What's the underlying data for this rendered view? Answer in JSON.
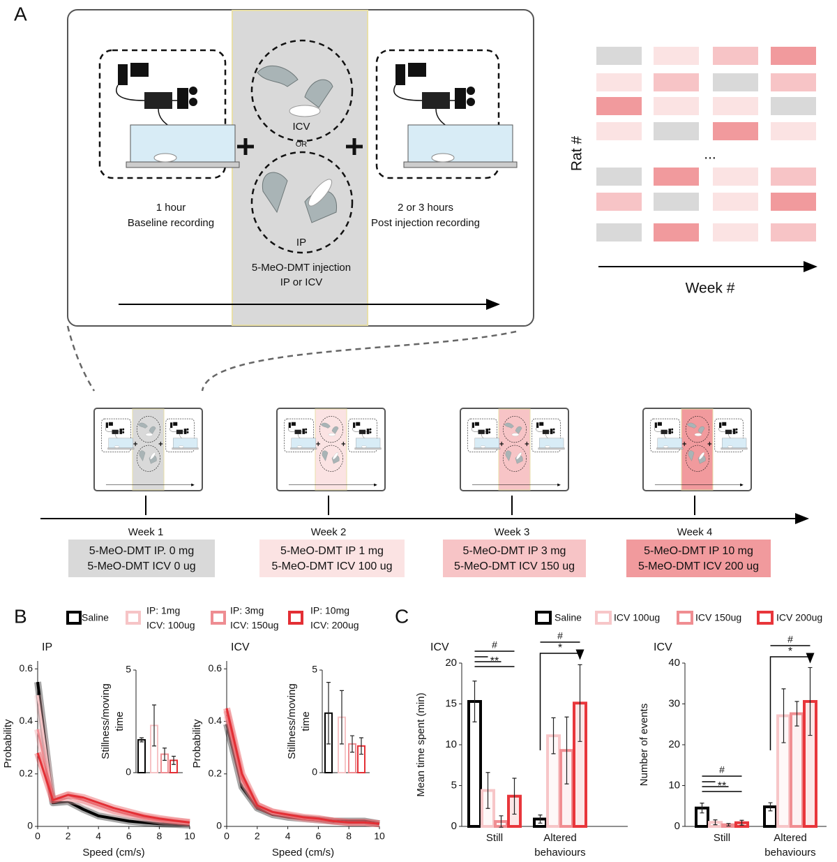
{
  "panel_a": {
    "label": "A",
    "baseline": [
      "1 hour",
      "Baseline recording"
    ],
    "icv": "ICV",
    "or": "OR",
    "ip": "IP",
    "injection": [
      "5-MeO-DMT injection",
      "IP or ICV"
    ],
    "post": [
      "2 or 3 hours",
      "Post injection recording"
    ],
    "heatmap": {
      "y_label": "Rat #",
      "x_label": "Week #",
      "ellipsis": "...",
      "colors": [
        "#d9d9d9",
        "#fbe3e3",
        "#f7c4c6",
        "#f19a9d"
      ],
      "levels": [
        [
          0,
          1,
          2,
          3
        ],
        [
          1,
          2,
          0,
          2
        ],
        [
          3,
          1,
          1,
          0
        ],
        [
          1,
          0,
          3,
          1
        ],
        [
          0,
          3,
          1,
          2
        ],
        [
          2,
          0,
          1,
          3
        ],
        [
          0,
          3,
          1,
          2
        ]
      ]
    }
  },
  "timeline": {
    "weeks": [
      {
        "label": "Week 1",
        "lines": [
          "5-MeO-DMT IP. 0 mg",
          "5-MeO-DMT ICV 0 ug"
        ],
        "color": "#d9d9d9"
      },
      {
        "label": "Week 2",
        "lines": [
          "5-MeO-DMT IP 1 mg",
          "5-MeO-DMT ICV 100 ug"
        ],
        "color": "#fbe3e3"
      },
      {
        "label": "Week 3",
        "lines": [
          "5-MeO-DMT IP 3 mg",
          "5-MeO-DMT ICV 150 ug"
        ],
        "color": "#f7c4c6"
      },
      {
        "label": "Week 4",
        "lines": [
          "5-MeO-DMT IP 10 mg",
          "5-MeO-DMT ICV 200 ug"
        ],
        "color": "#f19a9d"
      }
    ]
  },
  "panel_b": {
    "label": "B",
    "legend": [
      {
        "text": [
          "Saline"
        ],
        "color": "#000000"
      },
      {
        "text": [
          "IP: 1mg",
          "ICV: 100ug"
        ],
        "color": "#f6c4c6"
      },
      {
        "text": [
          "IP: 3mg",
          "ICV: 150ug"
        ],
        "color": "#ee8d92"
      },
      {
        "text": [
          "IP: 10mg",
          "ICV: 200ug"
        ],
        "color": "#e32f35"
      }
    ]
  },
  "panel_c": {
    "label": "C"
  },
  "chart_data": [
    {
      "type": "line",
      "title": "IP",
      "xlabel": "Speed (cm/s)",
      "ylabel": "Probability",
      "x": [
        0,
        1,
        2,
        3,
        4,
        5,
        6,
        7,
        8,
        9,
        10
      ],
      "xlim": [
        0,
        10
      ],
      "xticks": [
        0,
        2,
        4,
        6,
        8,
        10
      ],
      "ylim": [
        0,
        0.63
      ],
      "yticks": [
        0,
        0.2,
        0.4,
        0.6
      ],
      "series": [
        {
          "color": "#000000",
          "values": [
            0.55,
            0.09,
            0.095,
            0.065,
            0.04,
            0.03,
            0.02,
            0.015,
            0.01,
            0.008,
            0.005
          ]
        },
        {
          "color": "#f6c4c6",
          "values": [
            0.5,
            0.1,
            0.1,
            0.09,
            0.07,
            0.05,
            0.04,
            0.03,
            0.02,
            0.015,
            0.01
          ]
        },
        {
          "color": "#ee8d92",
          "values": [
            0.37,
            0.1,
            0.12,
            0.1,
            0.08,
            0.06,
            0.045,
            0.035,
            0.025,
            0.02,
            0.015
          ]
        },
        {
          "color": "#e32f35",
          "values": [
            0.28,
            0.1,
            0.12,
            0.11,
            0.09,
            0.07,
            0.055,
            0.04,
            0.03,
            0.022,
            0.015
          ]
        }
      ]
    },
    {
      "type": "bar_inset",
      "ylabel": [
        "Stillness/moving",
        "time"
      ],
      "ylim": [
        0,
        5
      ],
      "yticks": [
        0,
        5
      ],
      "values": [
        1.6,
        2.3,
        0.9,
        0.6
      ],
      "errors": [
        0.1,
        1.0,
        0.3,
        0.2
      ],
      "colors": [
        "#000000",
        "#f6c4c6",
        "#ee8d92",
        "#e32f35"
      ]
    },
    {
      "type": "line",
      "title": "ICV",
      "xlabel": "Speed (cm/s)",
      "ylabel": "Probability",
      "x": [
        0,
        1,
        2,
        3,
        4,
        5,
        6,
        7,
        8,
        9,
        10
      ],
      "xlim": [
        0,
        10
      ],
      "xticks": [
        0,
        2,
        4,
        6,
        8,
        10
      ],
      "ylim": [
        0,
        0.63
      ],
      "yticks": [
        0,
        0.2,
        0.4,
        0.6
      ],
      "series": [
        {
          "color": "#000000",
          "values": [
            0.39,
            0.15,
            0.07,
            0.045,
            0.035,
            0.03,
            0.025,
            0.02,
            0.02,
            0.02,
            0.01
          ]
        },
        {
          "color": "#f6c4c6",
          "values": [
            0.42,
            0.17,
            0.08,
            0.05,
            0.04,
            0.03,
            0.025,
            0.02,
            0.015,
            0.015,
            0.01
          ]
        },
        {
          "color": "#ee8d92",
          "values": [
            0.44,
            0.18,
            0.08,
            0.055,
            0.04,
            0.03,
            0.025,
            0.02,
            0.015,
            0.015,
            0.01
          ]
        },
        {
          "color": "#e32f35",
          "values": [
            0.45,
            0.2,
            0.08,
            0.055,
            0.045,
            0.035,
            0.03,
            0.02,
            0.015,
            0.015,
            0.01
          ]
        }
      ]
    },
    {
      "type": "bar_inset",
      "ylabel": [
        "Stillness/moving",
        "time"
      ],
      "ylim": [
        0,
        5
      ],
      "yticks": [
        0,
        5
      ],
      "values": [
        2.9,
        2.7,
        1.4,
        1.3
      ],
      "errors": [
        1.5,
        1.3,
        0.4,
        0.4
      ],
      "colors": [
        "#000000",
        "#f6c4c6",
        "#ee8d92",
        "#e32f35"
      ]
    },
    {
      "type": "bar",
      "title": "ICV",
      "ylabel": "Mean time spent (min)",
      "categories": [
        "Still",
        "Altered behaviours"
      ],
      "ylim": [
        0,
        20
      ],
      "yticks": [
        0,
        5,
        10,
        15,
        20
      ],
      "annotations": [
        "#",
        "**",
        "#",
        "*"
      ],
      "series": [
        {
          "name": "Saline",
          "color": "#000000",
          "values": [
            15.3,
            0.9
          ],
          "errors": [
            2.5,
            0.5
          ]
        },
        {
          "name": "ICV 100ug",
          "color": "#f7c6c8",
          "values": [
            4.4,
            11.1
          ],
          "errors": [
            2.2,
            2.2
          ]
        },
        {
          "name": "ICV 150ug",
          "color": "#f08e92",
          "values": [
            0.6,
            9.3
          ],
          "errors": [
            0.7,
            4.1
          ]
        },
        {
          "name": "ICV 200ug",
          "color": "#e8363b",
          "values": [
            3.7,
            15.1
          ],
          "errors": [
            2.2,
            4.7
          ]
        }
      ]
    },
    {
      "type": "bar",
      "title": "ICV",
      "ylabel": "Number of events",
      "categories": [
        "Still",
        "Altered behaviours"
      ],
      "ylim": [
        0,
        40
      ],
      "yticks": [
        0,
        10,
        20,
        30,
        40
      ],
      "annotations": [
        "#",
        "**",
        "#",
        "*"
      ],
      "series": [
        {
          "name": "Saline",
          "color": "#000000",
          "values": [
            4.5,
            4.8
          ],
          "errors": [
            1.2,
            1.0
          ]
        },
        {
          "name": "ICV 100ug",
          "color": "#f7c6c8",
          "values": [
            1.0,
            27.1
          ],
          "errors": [
            0.6,
            6.6
          ]
        },
        {
          "name": "ICV 150ug",
          "color": "#f08e92",
          "values": [
            0.4,
            27.6
          ],
          "errors": [
            0.3,
            3.0
          ]
        },
        {
          "name": "ICV 200ug",
          "color": "#e8363b",
          "values": [
            0.9,
            30.6
          ],
          "errors": [
            0.6,
            8.3
          ]
        }
      ]
    }
  ]
}
